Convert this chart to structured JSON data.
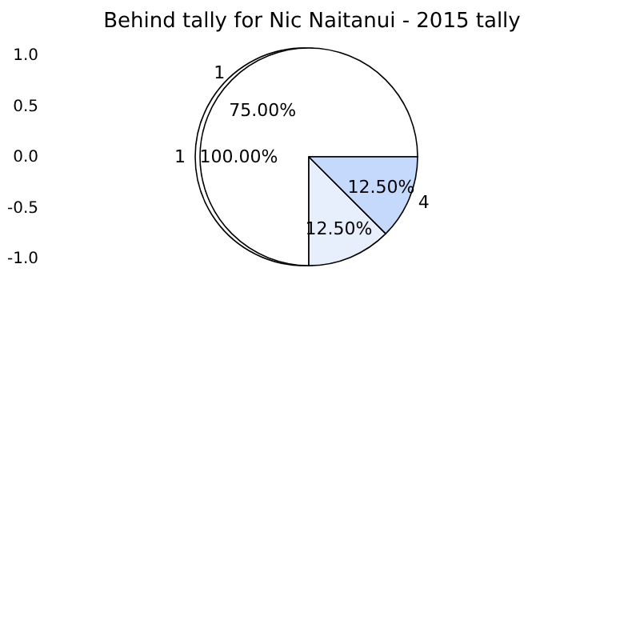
{
  "chart_data": [
    {
      "type": "pie",
      "title": "Behind tally for Nic Naitanui - 2015 tally",
      "categories": [
        "1"
      ],
      "values": [
        100
      ],
      "colors": [
        "#ffffff"
      ],
      "value_labels": [
        "100.00%"
      ],
      "annotations": [
        "1.0",
        "0.5",
        "0.0",
        "-0.5",
        "-1.0"
      ]
    },
    {
      "type": "pie",
      "categories": [
        "1",
        null,
        "4"
      ],
      "values": [
        75,
        12.5,
        12.5
      ],
      "colors": [
        "#ffffff",
        "#e8effc",
        "#c5d9fd"
      ],
      "value_labels": [
        "75.00%",
        "12.50%",
        "12.50%"
      ]
    }
  ]
}
